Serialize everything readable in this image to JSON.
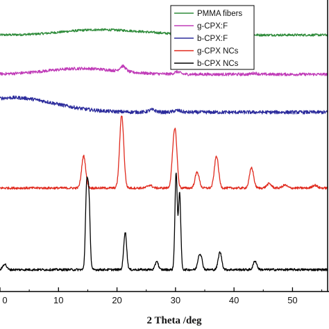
{
  "chart_data": {
    "type": "line",
    "xlabel": "2 Theta /deg",
    "ylabel": "",
    "xlim": [
      0,
      56
    ],
    "x_ticks": [
      "0",
      "10",
      "20",
      "30",
      "40",
      "50"
    ],
    "grid": false,
    "legend_position": "top-right",
    "series": [
      {
        "name": "PMMA fibers",
        "color": "#2e8b3a",
        "baseline": 0.88,
        "noise": 0.004,
        "peaks": [
          [
            14,
            0.01,
            5
          ],
          [
            21,
            0.012,
            6
          ]
        ]
      },
      {
        "name": "g-CPX:F",
        "color": "#c03cb8",
        "baseline": 0.745,
        "noise": 0.005,
        "peaks": [
          [
            14,
            0.02,
            6
          ],
          [
            21.0,
            0.018,
            0.5
          ],
          [
            30.3,
            0.008,
            0.5
          ],
          [
            43.5,
            0.004,
            0.5
          ]
        ]
      },
      {
        "name": "b-CPX:F",
        "color": "#2c2c9c",
        "baseline": 0.615,
        "noise": 0.006,
        "peaks": [
          [
            2.3,
            0.05,
            7
          ],
          [
            26.0,
            0.008,
            0.6
          ],
          [
            30.3,
            0.006,
            0.6
          ]
        ]
      },
      {
        "name": "g-CPX NCs",
        "color": "#e02a1e",
        "baseline": 0.355,
        "noise": 0.004,
        "peaks": [
          [
            14.3,
            0.11,
            0.35
          ],
          [
            20.8,
            0.25,
            0.35
          ],
          [
            25.6,
            0.01,
            0.4
          ],
          [
            29.6,
            0.09,
            0.3
          ],
          [
            30.0,
            0.16,
            0.3
          ],
          [
            33.7,
            0.055,
            0.35
          ],
          [
            37.0,
            0.11,
            0.35
          ],
          [
            43.0,
            0.07,
            0.35
          ],
          [
            46.0,
            0.015,
            0.4
          ],
          [
            48.7,
            0.01,
            0.4
          ],
          [
            53.8,
            0.01,
            0.4
          ]
        ]
      },
      {
        "name": "b-CPX NCs",
        "color": "#000000",
        "baseline": 0.075,
        "noise": 0.004,
        "peaks": [
          [
            0.8,
            0.02,
            0.3
          ],
          [
            14.8,
            0.27,
            0.2
          ],
          [
            15.2,
            0.24,
            0.2
          ],
          [
            21.4,
            0.13,
            0.25
          ],
          [
            26.8,
            0.03,
            0.25
          ],
          [
            30.1,
            0.33,
            0.2
          ],
          [
            30.7,
            0.26,
            0.2
          ],
          [
            34.0,
            0.04,
            0.25
          ],
          [
            34.4,
            0.035,
            0.25
          ],
          [
            37.6,
            0.06,
            0.3
          ],
          [
            43.6,
            0.03,
            0.3
          ]
        ]
      }
    ]
  }
}
